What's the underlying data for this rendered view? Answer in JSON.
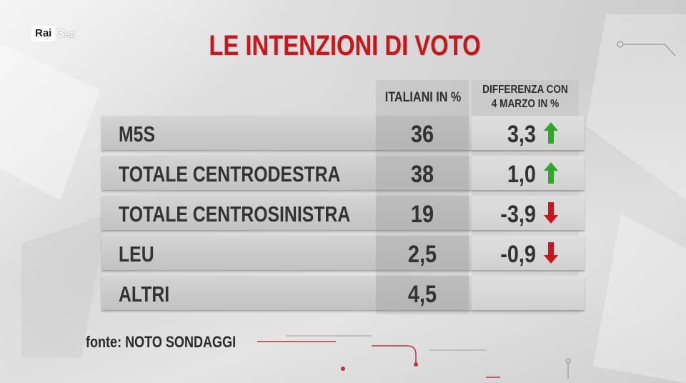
{
  "broadcaster": {
    "logo_text": "Rai",
    "channel_number": "3",
    "quality": "HD"
  },
  "title": "LE INTENZIONI DI VOTO",
  "source": "fonte: NOTO SONDAGGI",
  "colors": {
    "title": "#c8161b",
    "up_arrow": "#2fa82a",
    "down_arrow": "#c8161b"
  },
  "chart_data": {
    "type": "table",
    "title": "LE INTENZIONI DI VOTO",
    "columns": [
      "",
      "ITALIANI IN %",
      "DIFFERENZA CON 4 MARZO IN %"
    ],
    "column_headers": {
      "italiani": "ITALIANI IN %",
      "differenza_line1": "DIFFERENZA CON",
      "differenza_line2": "4 MARZO IN %"
    },
    "rows": [
      {
        "party": "M5S",
        "italiani": "36",
        "differenza": "3,3",
        "trend": "up"
      },
      {
        "party": "TOTALE CENTRODESTRA",
        "italiani": "38",
        "differenza": "1,0",
        "trend": "up"
      },
      {
        "party": "TOTALE CENTROSINISTRA",
        "italiani": "19",
        "differenza": "-3,9",
        "trend": "down"
      },
      {
        "party": "LEU",
        "italiani": "2,5",
        "differenza": "-0,9",
        "trend": "down"
      },
      {
        "party": "ALTRI",
        "italiani": "4,5",
        "differenza": "",
        "trend": ""
      }
    ]
  }
}
